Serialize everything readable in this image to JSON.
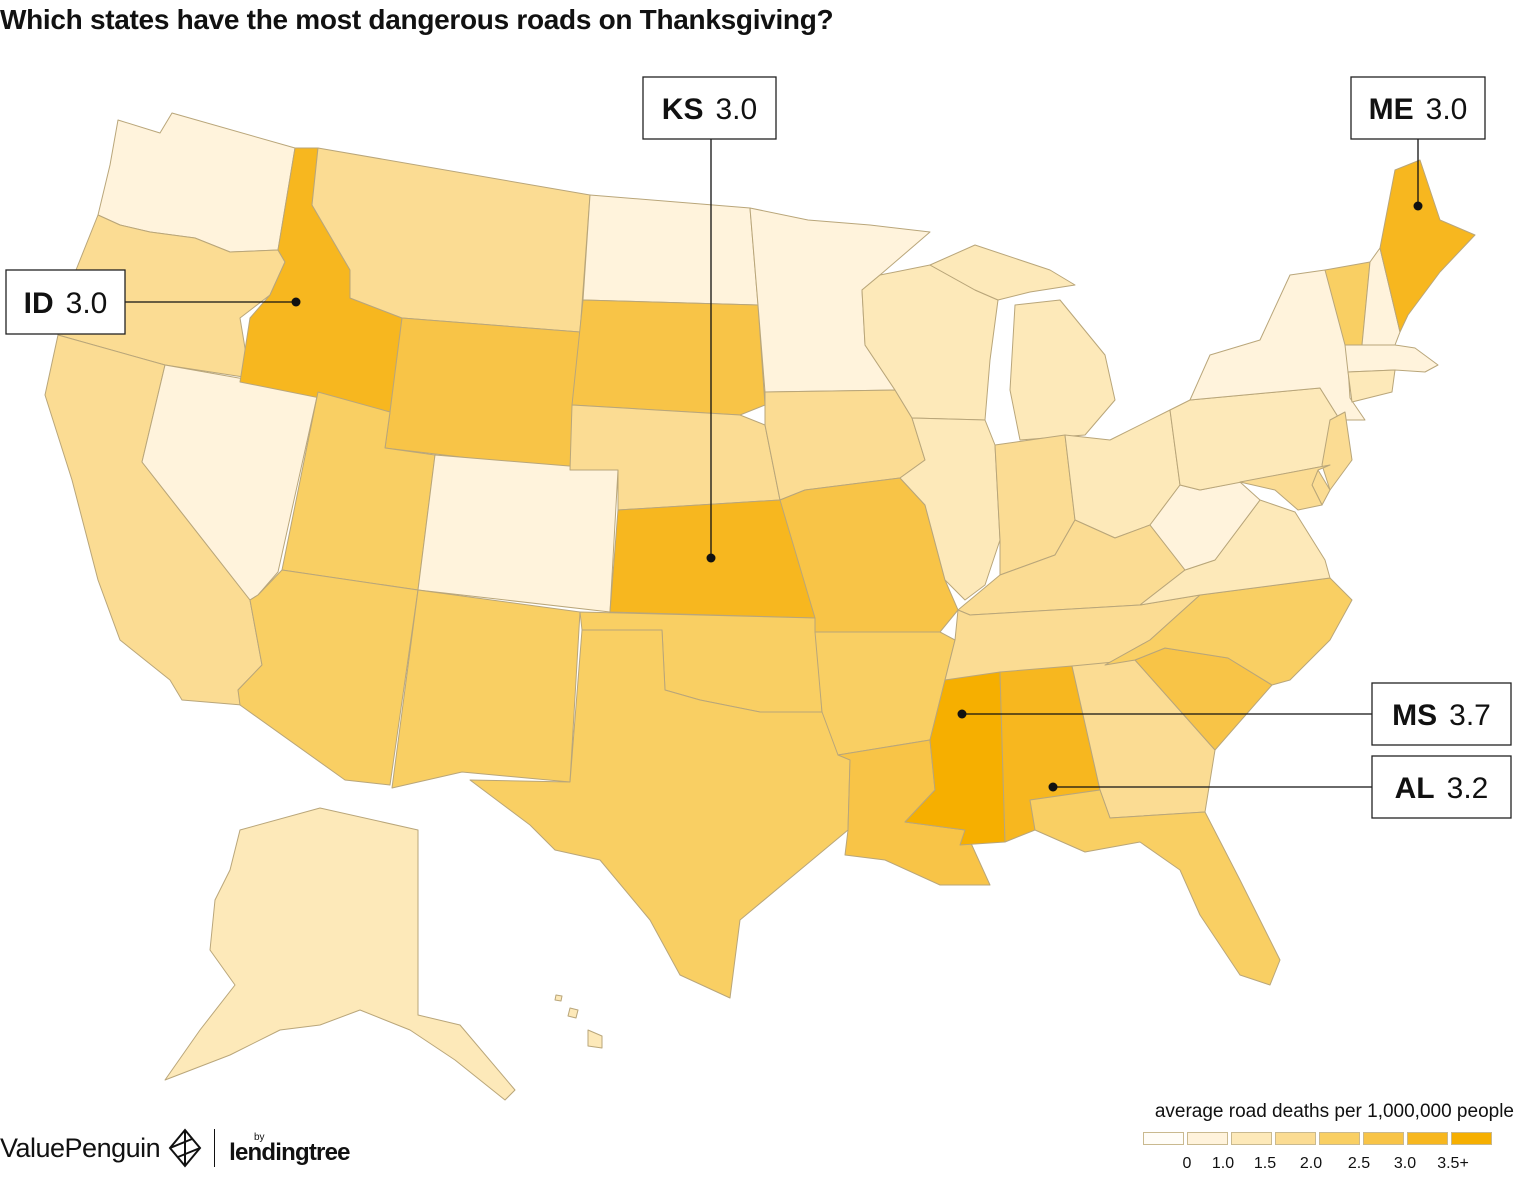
{
  "title": "Which states have the most dangerous roads on Thanksgiving?",
  "map": {
    "metric": "average road deaths per 1,000,000 people",
    "colors": {
      "c0": "#fffdf8",
      "c1": "#fff3dc",
      "c2": "#fde9b9",
      "c3": "#fbdc93",
      "c4": "#f9cf63",
      "c5": "#f8c447",
      "c6": "#f7b71f",
      "c7": "#f6af00",
      "border": "#b9a67a"
    },
    "states": [
      {
        "id": "WA",
        "tier": 1
      },
      {
        "id": "OR",
        "tier": 3
      },
      {
        "id": "CA",
        "tier": 3
      },
      {
        "id": "NV",
        "tier": 1
      },
      {
        "id": "ID",
        "tier": 6
      },
      {
        "id": "MT",
        "tier": 3
      },
      {
        "id": "WY",
        "tier": 5
      },
      {
        "id": "UT",
        "tier": 4
      },
      {
        "id": "AZ",
        "tier": 4
      },
      {
        "id": "CO",
        "tier": 1
      },
      {
        "id": "NM",
        "tier": 4
      },
      {
        "id": "ND",
        "tier": 1
      },
      {
        "id": "SD",
        "tier": 5
      },
      {
        "id": "NE",
        "tier": 3
      },
      {
        "id": "KS",
        "tier": 6
      },
      {
        "id": "OK",
        "tier": 4
      },
      {
        "id": "TX",
        "tier": 4
      },
      {
        "id": "MN",
        "tier": 1
      },
      {
        "id": "IA",
        "tier": 3
      },
      {
        "id": "MO",
        "tier": 5
      },
      {
        "id": "AR",
        "tier": 4
      },
      {
        "id": "LA",
        "tier": 5
      },
      {
        "id": "WI",
        "tier": 2
      },
      {
        "id": "IL",
        "tier": 2
      },
      {
        "id": "MI",
        "tier": 2
      },
      {
        "id": "IN",
        "tier": 3
      },
      {
        "id": "OH",
        "tier": 2
      },
      {
        "id": "KY",
        "tier": 3
      },
      {
        "id": "TN",
        "tier": 3
      },
      {
        "id": "MS",
        "tier": 7
      },
      {
        "id": "AL",
        "tier": 6
      },
      {
        "id": "GA",
        "tier": 3
      },
      {
        "id": "FL",
        "tier": 4
      },
      {
        "id": "SC",
        "tier": 5
      },
      {
        "id": "NC",
        "tier": 4
      },
      {
        "id": "VA",
        "tier": 2
      },
      {
        "id": "WV",
        "tier": 1
      },
      {
        "id": "PA",
        "tier": 2
      },
      {
        "id": "NY",
        "tier": 1
      },
      {
        "id": "VT",
        "tier": 4
      },
      {
        "id": "NH",
        "tier": 1
      },
      {
        "id": "ME",
        "tier": 6
      },
      {
        "id": "MA",
        "tier": 1
      },
      {
        "id": "CT",
        "tier": 2
      },
      {
        "id": "NJ",
        "tier": 3
      },
      {
        "id": "DE",
        "tier": 3
      },
      {
        "id": "MD",
        "tier": 3
      },
      {
        "id": "AK",
        "tier": 2
      },
      {
        "id": "HI",
        "tier": 2
      }
    ],
    "callouts": [
      {
        "abbr": "KS",
        "value": "3.0"
      },
      {
        "abbr": "ME",
        "value": "3.0"
      },
      {
        "abbr": "ID",
        "value": "3.0"
      },
      {
        "abbr": "MS",
        "value": "3.7"
      },
      {
        "abbr": "AL",
        "value": "3.2"
      }
    ]
  },
  "legend": {
    "title": "average road deaths per 1,000,000 people",
    "ticks": [
      "0",
      "1.0",
      "1.5",
      "2.0",
      "2.5",
      "3.0",
      "3.5+"
    ]
  },
  "brand": {
    "name": "ValuePenguin",
    "by": "by",
    "partner": "lendingtree"
  }
}
